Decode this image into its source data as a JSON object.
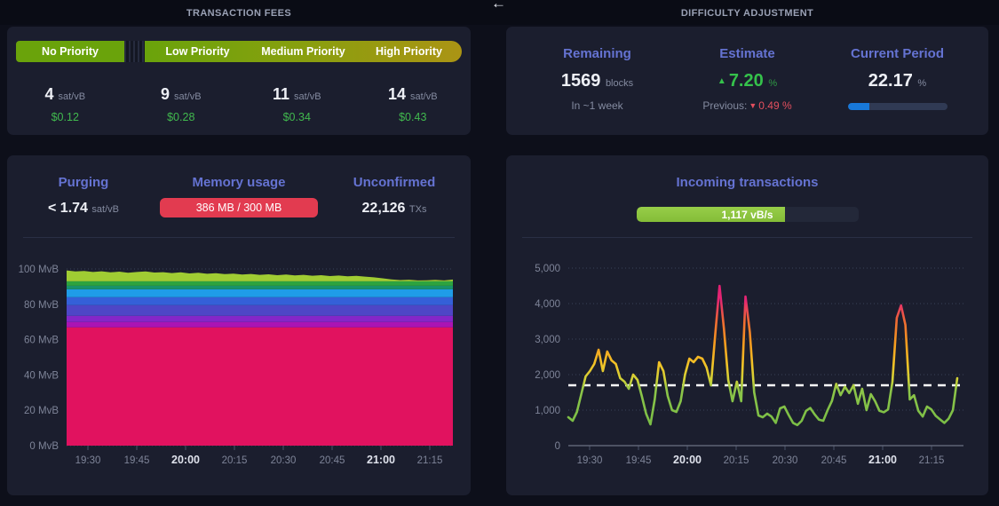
{
  "colors": {
    "bg_page": "#0d0f1a",
    "bg_header": "#0a0c15",
    "bg_card": "#1b1e2e",
    "text_header": "#9aa1b5",
    "text_primary": "#eef0f6",
    "text_muted": "#848ba0",
    "heading_blue": "#6573d2",
    "green_money": "#41b94e",
    "green_estimate": "#35c24b",
    "red": "#e34f5e",
    "badge_red": "#e23b50",
    "bar_blue": "#1878d8",
    "bar_track": "#303a54",
    "bar_track2": "#232839",
    "incoming_green": "#8dc63f",
    "priority_green": "#6aa30b",
    "priority_yellow": "#ab9414",
    "divider": "#2a2f44"
  },
  "header": {
    "left_title": "TRANSACTION FEES",
    "right_title": "DIFFICULTY ADJUSTMENT",
    "arrow_icon": "←"
  },
  "fees": {
    "tiers": [
      {
        "label": "No Priority",
        "rate": "4",
        "unit": "sat/vB",
        "usd": "$0.12"
      },
      {
        "label": "Low Priority",
        "rate": "9",
        "unit": "sat/vB",
        "usd": "$0.28"
      },
      {
        "label": "Medium Priority",
        "rate": "11",
        "unit": "sat/vB",
        "usd": "$0.34"
      },
      {
        "label": "High Priority",
        "rate": "14",
        "unit": "sat/vB",
        "usd": "$0.43"
      }
    ]
  },
  "difficulty": {
    "remaining": {
      "heading": "Remaining",
      "value": "1569",
      "unit": "blocks",
      "sub": "In ~1 week"
    },
    "estimate": {
      "heading": "Estimate",
      "arrow_up": "▲",
      "value": "7.20",
      "unit": "%",
      "previous_label": "Previous:",
      "arrow_down": "▼",
      "previous_value": "0.49 %"
    },
    "current_period": {
      "heading": "Current Period",
      "value": "22.17",
      "unit": "%",
      "progress_pct": 22.17
    }
  },
  "mempool_stats": {
    "purging": {
      "heading": "Purging",
      "value": "< 1.74",
      "unit": "sat/vB"
    },
    "memory": {
      "heading": "Memory usage",
      "badge": "386 MB / 300 MB"
    },
    "unconfirmed": {
      "heading": "Unconfirmed",
      "value": "22,126",
      "unit": "TXs"
    }
  },
  "incoming": {
    "heading": "Incoming transactions",
    "badge": "1,117 vB/s",
    "progress_pct": 67
  },
  "chart_data": [
    {
      "type": "area",
      "id": "mempool-by-fee",
      "title": "Mempool size by fee band (MvB over time)",
      "xlabel": "",
      "ylabel": "MvB",
      "x_ticks": [
        "19:30",
        "19:45",
        "20:00",
        "20:15",
        "20:30",
        "20:45",
        "21:00",
        "21:15"
      ],
      "x_ticks_bold": [
        "20:00",
        "21:00"
      ],
      "y_ticks": [
        "0 MvB",
        "20 MvB",
        "40 MvB",
        "60 MvB",
        "80 MvB",
        "100 MvB"
      ],
      "ylim": [
        0,
        100
      ],
      "grid": "dotted",
      "layers": [
        {
          "name": "band-1",
          "color": "#e1125f",
          "thickness": 67
        },
        {
          "name": "band-2",
          "color": "#ab14b4",
          "thickness": 3
        },
        {
          "name": "band-3",
          "color": "#8526c8",
          "thickness": 3.5
        },
        {
          "name": "band-4",
          "color": "#4e46c6",
          "thickness": 6
        },
        {
          "name": "band-5",
          "color": "#3460d8",
          "thickness": 4.5
        },
        {
          "name": "band-6",
          "color": "#1f9ce8",
          "thickness": 4.5
        },
        {
          "name": "band-7",
          "color": "#18926a",
          "thickness": 2
        },
        {
          "name": "band-8",
          "color": "#2da33f",
          "thickness": 2.5
        },
        {
          "name": "band-9-top",
          "color": "#a0cc33",
          "thickness": "remainder"
        }
      ],
      "total": [
        99.2,
        98.6,
        98.9,
        98.3,
        98.7,
        98.1,
        98.5,
        97.9,
        98.3,
        98.6,
        98.0,
        98.2,
        97.7,
        98.1,
        97.5,
        97.9,
        97.3,
        97.6,
        97.1,
        97.4,
        96.9,
        97.2,
        96.7,
        97.0,
        96.5,
        96.9,
        96.4,
        96.7,
        96.2,
        96.5,
        96.0,
        96.3,
        95.9,
        96.1,
        95.7,
        95.3,
        94.7,
        94.1,
        93.7,
        93.9,
        93.5,
        93.6,
        93.8,
        93.5,
        94.0
      ]
    },
    {
      "type": "line",
      "id": "incoming-tx-rate",
      "title": "Incoming transactions (vB/s over time)",
      "xlabel": "",
      "ylabel": "vB/s",
      "x_ticks": [
        "19:30",
        "19:45",
        "20:00",
        "20:15",
        "20:30",
        "20:45",
        "21:00",
        "21:15"
      ],
      "x_ticks_bold": [
        "20:00",
        "21:00"
      ],
      "y_ticks": [
        "0",
        "1,000",
        "2,000",
        "3,000",
        "4,000",
        "5,000"
      ],
      "ylim": [
        0,
        5000
      ],
      "grid": "dotted",
      "dashed_reference_value": 1700,
      "gradient_stops": [
        {
          "v": 5250,
          "c": "#dd1670"
        },
        {
          "v": 4100,
          "c": "#e42573"
        },
        {
          "v": 3500,
          "c": "#ef6a33"
        },
        {
          "v": 2900,
          "c": "#f59a1f"
        },
        {
          "v": 2300,
          "c": "#f2c226"
        },
        {
          "v": 1850,
          "c": "#cfd238"
        },
        {
          "v": 1550,
          "c": "#8cc549"
        },
        {
          "v": 0,
          "c": "#6fb944"
        }
      ],
      "values": [
        800,
        700,
        950,
        1450,
        1950,
        2100,
        2300,
        2700,
        2100,
        2650,
        2400,
        2300,
        1900,
        1800,
        1600,
        2000,
        1850,
        1400,
        900,
        600,
        1300,
        2350,
        2100,
        1400,
        1000,
        950,
        1250,
        2000,
        2450,
        2350,
        2500,
        2450,
        2200,
        1700,
        3150,
        4500,
        3300,
        1850,
        1250,
        1800,
        1250,
        4200,
        3200,
        1500,
        850,
        800,
        900,
        820,
        640,
        1050,
        1100,
        860,
        640,
        580,
        700,
        980,
        1060,
        880,
        730,
        700,
        1000,
        1260,
        1740,
        1420,
        1660,
        1480,
        1700,
        1180,
        1600,
        1000,
        1450,
        1250,
        980,
        940,
        1020,
        1800,
        3600,
        3950,
        3400,
        1300,
        1420,
        980,
        820,
        1100,
        1020,
        840,
        740,
        640,
        760,
        1000,
        1900
      ]
    }
  ]
}
